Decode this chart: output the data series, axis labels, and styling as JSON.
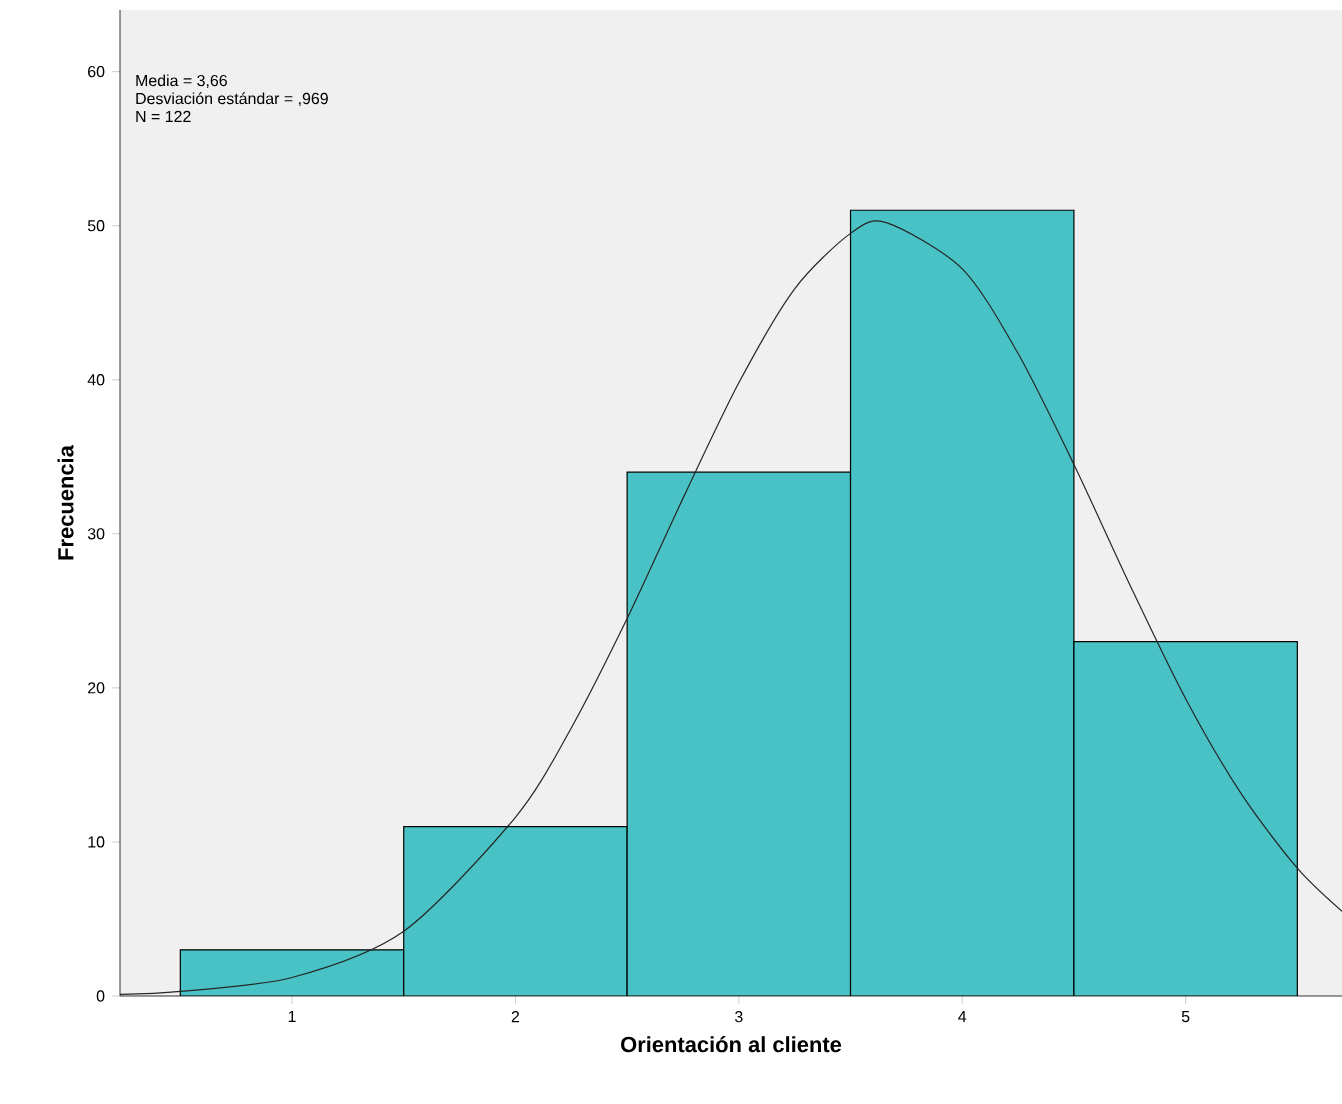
{
  "chart_data": {
    "type": "histogram",
    "xlabel": "Orientación al cliente",
    "ylabel": "Frecuencia",
    "bins": [
      0.5,
      1.5,
      2.5,
      3.5,
      4.5,
      5.5
    ],
    "values": [
      3,
      11,
      34,
      51,
      23
    ],
    "color": "#48c2c5",
    "xlim": [
      0.23,
      5.7
    ],
    "ylim": [
      0,
      64
    ],
    "xticks": [
      1,
      2,
      3,
      4,
      5
    ],
    "yticks": [
      0,
      10,
      20,
      30,
      40,
      50,
      60
    ],
    "grid": false,
    "annotations": [
      "Media = 3,66",
      "Desviación estándar = ,969",
      "N = 122"
    ],
    "series": [
      {
        "type": "line",
        "color": "#262626",
        "line_style": "solid",
        "x": [
          0.23,
          0.5,
          1.0,
          1.5,
          2.0,
          2.25,
          2.5,
          2.75,
          3.0,
          3.25,
          3.5,
          3.66,
          4.0,
          4.25,
          4.5,
          4.75,
          5.0,
          5.25,
          5.5,
          5.7
        ],
        "values": [
          0.1,
          0.3,
          1.2,
          4.2,
          11.6,
          17.4,
          24.5,
          32.3,
          39.8,
          45.9,
          49.5,
          50.2,
          47.2,
          41.7,
          34.5,
          26.7,
          19.3,
          13.1,
          8.3,
          5.5
        ]
      }
    ]
  }
}
